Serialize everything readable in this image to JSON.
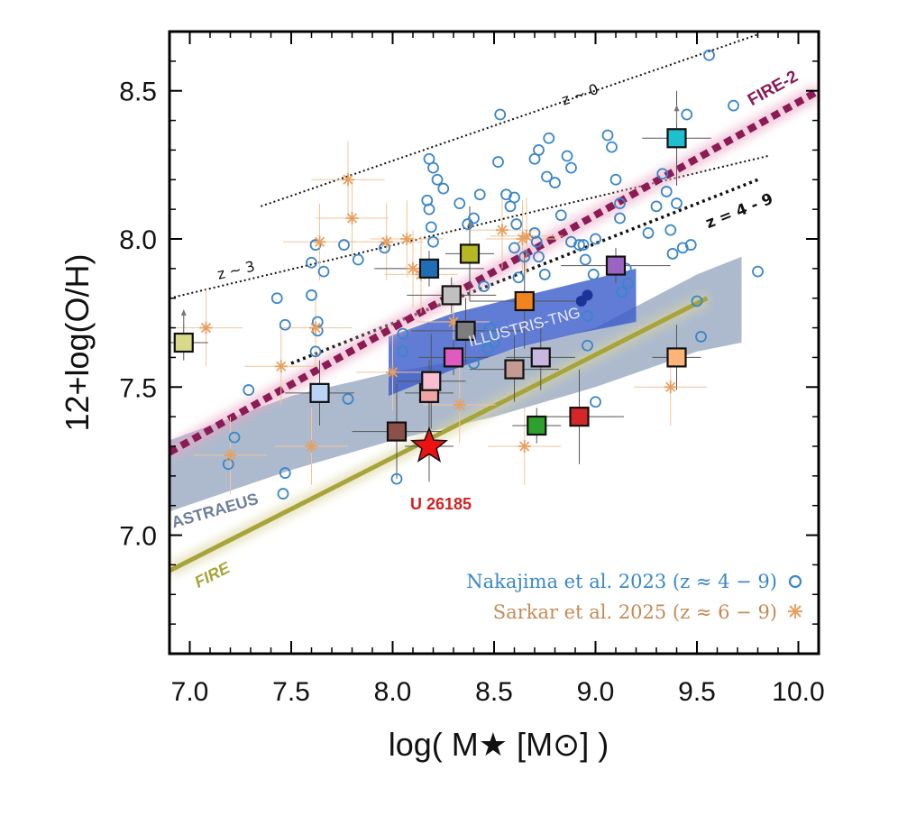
{
  "chart_data": {
    "type": "scatter",
    "title": "",
    "xlabel": "log( M★ [M⊙] )",
    "ylabel": "12+log(O/H)",
    "xlim": [
      6.9,
      10.1
    ],
    "ylim": [
      6.6,
      8.7
    ],
    "xticks": [
      7.0,
      7.5,
      8.0,
      8.5,
      9.0,
      9.5,
      10.0
    ],
    "xtick_labels": [
      "7.0",
      "7.5",
      "8.0",
      "8.5",
      "9.0",
      "9.5",
      "10.0"
    ],
    "yticks": [
      7.0,
      7.5,
      8.0,
      8.5
    ],
    "ytick_labels": [
      "7.0",
      "7.5",
      "8.0",
      "8.5"
    ],
    "grid": false,
    "legend": [
      {
        "label": "Nakajima et al. 2023 (z ≈ 4 − 9)",
        "marker": "open-circle",
        "color": "#3a86c8"
      },
      {
        "label": "Sarkar et al. 2025 (z ≈ 6 − 9)",
        "marker": "asterisk",
        "color": "#e8a060"
      }
    ],
    "relations": [
      {
        "name": "z ~ 0",
        "style": "dotted",
        "color": "#111111",
        "x": [
          7.35,
          9.8
        ],
        "y": [
          8.11,
          8.69
        ]
      },
      {
        "name": "z ~ 3",
        "style": "dotted",
        "color": "#111111",
        "x": [
          6.9,
          9.85
        ],
        "y": [
          7.8,
          8.28
        ]
      },
      {
        "name": "z = 4 - 9",
        "style": "dotted-thick",
        "color": "#111111",
        "x": [
          7.5,
          9.8
        ],
        "y": [
          7.58,
          8.2
        ]
      },
      {
        "name": "FIRE-2",
        "style": "dashed-thick",
        "color": "#8b1a55",
        "x": [
          6.9,
          10.1
        ],
        "y": [
          7.28,
          8.5
        ]
      },
      {
        "name": "FIRE",
        "style": "solid-thick",
        "color": "#a8a43a",
        "x": [
          6.9,
          9.55
        ],
        "y": [
          6.88,
          7.8
        ]
      }
    ],
    "bands": [
      {
        "name": "ASTRAEUS",
        "color": "#7b8fae",
        "upper": {
          "x": [
            6.9,
            7.5,
            8.0,
            8.5,
            9.0,
            9.5,
            9.72
          ],
          "y": [
            7.32,
            7.47,
            7.55,
            7.61,
            7.7,
            7.88,
            7.94
          ]
        },
        "lower": {
          "x": [
            6.9,
            7.5,
            8.0,
            8.5,
            9.0,
            9.5,
            9.72
          ],
          "y": [
            7.08,
            7.22,
            7.32,
            7.4,
            7.5,
            7.62,
            7.65
          ]
        }
      },
      {
        "name": "ILLUSTRIS-TNG",
        "color": "#3557c9",
        "upper": {
          "x": [
            7.98,
            8.3,
            8.6,
            8.9,
            9.2
          ],
          "y": [
            7.67,
            7.75,
            7.8,
            7.85,
            7.9
          ]
        },
        "lower": {
          "x": [
            7.98,
            8.3,
            8.6,
            8.9,
            9.2
          ],
          "y": [
            7.47,
            7.56,
            7.63,
            7.68,
            7.72
          ]
        }
      }
    ],
    "series": [
      {
        "name": "Nakajima et al. 2023",
        "marker": "open-circle",
        "color": "#3a86c8",
        "points": [
          [
            7.29,
            7.49
          ],
          [
            7.22,
            7.33
          ],
          [
            7.19,
            7.24
          ],
          [
            7.43,
            7.8
          ],
          [
            7.47,
            7.71
          ],
          [
            7.47,
            7.21
          ],
          [
            7.46,
            7.14
          ],
          [
            7.6,
            7.92
          ],
          [
            7.62,
            7.98
          ],
          [
            7.6,
            7.81
          ],
          [
            7.63,
            7.72
          ],
          [
            7.66,
            7.89
          ],
          [
            7.63,
            7.69
          ],
          [
            7.62,
            7.62
          ],
          [
            7.76,
            7.98
          ],
          [
            7.78,
            7.46
          ],
          [
            7.83,
            7.93
          ],
          [
            7.96,
            7.97
          ],
          [
            8.02,
            7.19
          ],
          [
            8.05,
            7.62
          ],
          [
            8.05,
            7.68
          ],
          [
            8.17,
            8.13
          ],
          [
            8.2,
            8.24
          ],
          [
            8.22,
            8.2
          ],
          [
            8.25,
            8.17
          ],
          [
            8.18,
            8.27
          ],
          [
            8.18,
            8.1
          ],
          [
            8.19,
            8.04
          ],
          [
            8.2,
            7.99
          ],
          [
            8.33,
            8.12
          ],
          [
            8.37,
            8.05
          ],
          [
            8.4,
            8.07
          ],
          [
            8.43,
            8.15
          ],
          [
            8.45,
            7.84
          ],
          [
            8.48,
            7.7
          ],
          [
            8.5,
            7.65
          ],
          [
            8.47,
            7.63
          ],
          [
            8.4,
            7.58
          ],
          [
            8.52,
            8.26
          ],
          [
            8.53,
            8.42
          ],
          [
            8.56,
            8.15
          ],
          [
            8.58,
            8.11
          ],
          [
            8.6,
            8.14
          ],
          [
            8.61,
            8.05
          ],
          [
            8.6,
            7.97
          ],
          [
            8.62,
            7.87
          ],
          [
            8.65,
            7.94
          ],
          [
            8.7,
            8.27
          ],
          [
            8.72,
            8.3
          ],
          [
            8.7,
            8.02
          ],
          [
            8.71,
            7.99
          ],
          [
            8.72,
            7.94
          ],
          [
            8.75,
            7.88
          ],
          [
            8.76,
            8.21
          ],
          [
            8.77,
            8.34
          ],
          [
            8.8,
            8.19
          ],
          [
            8.83,
            8.08
          ],
          [
            8.86,
            8.28
          ],
          [
            8.88,
            8.24
          ],
          [
            8.88,
            7.99
          ],
          [
            8.92,
            7.98
          ],
          [
            8.94,
            7.98
          ],
          [
            8.95,
            7.93
          ],
          [
            8.99,
            7.88
          ],
          [
            8.96,
            7.74
          ],
          [
            9.0,
            7.45
          ],
          [
            8.96,
            7.64
          ],
          [
            9.0,
            8.0
          ],
          [
            9.06,
            8.35
          ],
          [
            9.08,
            8.31
          ],
          [
            9.1,
            8.2
          ],
          [
            9.12,
            8.12
          ],
          [
            9.12,
            8.07
          ],
          [
            9.15,
            7.9
          ],
          [
            9.13,
            7.82
          ],
          [
            9.16,
            7.85
          ],
          [
            9.26,
            8.02
          ],
          [
            9.3,
            8.11
          ],
          [
            9.33,
            8.22
          ],
          [
            9.35,
            8.16
          ],
          [
            9.37,
            8.03
          ],
          [
            9.38,
            7.95
          ],
          [
            9.4,
            8.12
          ],
          [
            9.43,
            7.97
          ],
          [
            9.45,
            8.42
          ],
          [
            9.47,
            7.98
          ],
          [
            9.5,
            7.79
          ],
          [
            9.52,
            7.67
          ],
          [
            9.56,
            8.62
          ],
          [
            9.68,
            8.45
          ],
          [
            9.8,
            7.89
          ]
        ]
      },
      {
        "name": "Sarkar et al. 2025",
        "marker": "asterisk",
        "color": "#e8a060",
        "points": [
          [
            7.08,
            7.7
          ],
          [
            7.2,
            7.27
          ],
          [
            7.45,
            7.57
          ],
          [
            7.6,
            7.3
          ],
          [
            7.62,
            7.7
          ],
          [
            7.64,
            7.99
          ],
          [
            7.78,
            8.2
          ],
          [
            7.8,
            8.07
          ],
          [
            7.97,
            7.99
          ],
          [
            8.0,
            7.55
          ],
          [
            8.07,
            8.0
          ],
          [
            8.1,
            7.9
          ],
          [
            8.14,
            7.88
          ],
          [
            8.3,
            7.72
          ],
          [
            8.33,
            7.44
          ],
          [
            8.54,
            8.03
          ],
          [
            8.64,
            8.0
          ],
          [
            8.66,
            8.01
          ],
          [
            8.65,
            7.3
          ],
          [
            9.37,
            7.5
          ]
        ]
      },
      {
        "name": "Individual sources (squares)",
        "marker": "square",
        "points": [
          {
            "x": 6.97,
            "y": 7.65,
            "color": "#d9d98a",
            "lower_limit": true
          },
          {
            "x": 7.64,
            "y": 7.48,
            "color": "#b9d4f5"
          },
          {
            "x": 8.02,
            "y": 7.35,
            "color": "#8b5048"
          },
          {
            "x": 8.18,
            "y": 7.9,
            "color": "#1f6db5"
          },
          {
            "x": 8.18,
            "y": 7.48,
            "color": "#f0a4a4"
          },
          {
            "x": 8.19,
            "y": 7.52,
            "color": "#f7bfd0"
          },
          {
            "x": 8.29,
            "y": 7.81,
            "color": "#c0c0c0"
          },
          {
            "x": 8.36,
            "y": 7.69,
            "color": "#7d7d7d"
          },
          {
            "x": 8.38,
            "y": 7.95,
            "color": "#b5b823",
            "lower_limit": true
          },
          {
            "x": 8.3,
            "y": 7.6,
            "color": "#e05bbf"
          },
          {
            "x": 8.6,
            "y": 7.56,
            "color": "#c49b93"
          },
          {
            "x": 8.65,
            "y": 7.79,
            "color": "#f2841f"
          },
          {
            "x": 8.71,
            "y": 7.37,
            "color": "#2ea02e"
          },
          {
            "x": 8.73,
            "y": 7.6,
            "color": "#c9b7e0"
          },
          {
            "x": 8.92,
            "y": 7.4,
            "color": "#d62728"
          },
          {
            "x": 9.1,
            "y": 7.91,
            "color": "#9b64c2"
          },
          {
            "x": 9.4,
            "y": 7.6,
            "color": "#fcb478"
          },
          {
            "x": 9.4,
            "y": 8.34,
            "color": "#1ec0d0",
            "lower_limit": true
          }
        ]
      },
      {
        "name": "U 26185",
        "marker": "star",
        "color": "#ee1111",
        "points": [
          [
            8.18,
            7.3
          ]
        ]
      },
      {
        "name": "Dark blue points",
        "marker": "filled-circle",
        "color": "#1e3399",
        "points": [
          [
            8.93,
            7.79
          ],
          [
            8.96,
            7.81
          ]
        ]
      }
    ],
    "annotations": {
      "z0": "z ~ 0",
      "z3": "z ~ 3",
      "z49": "z = 4 - 9",
      "fire2": "FIRE-2",
      "fire": "FIRE",
      "astraeus": "ASTRAEUS",
      "illustris": "ILLUSTRIS-TNG",
      "u26185": "U 26185"
    }
  }
}
